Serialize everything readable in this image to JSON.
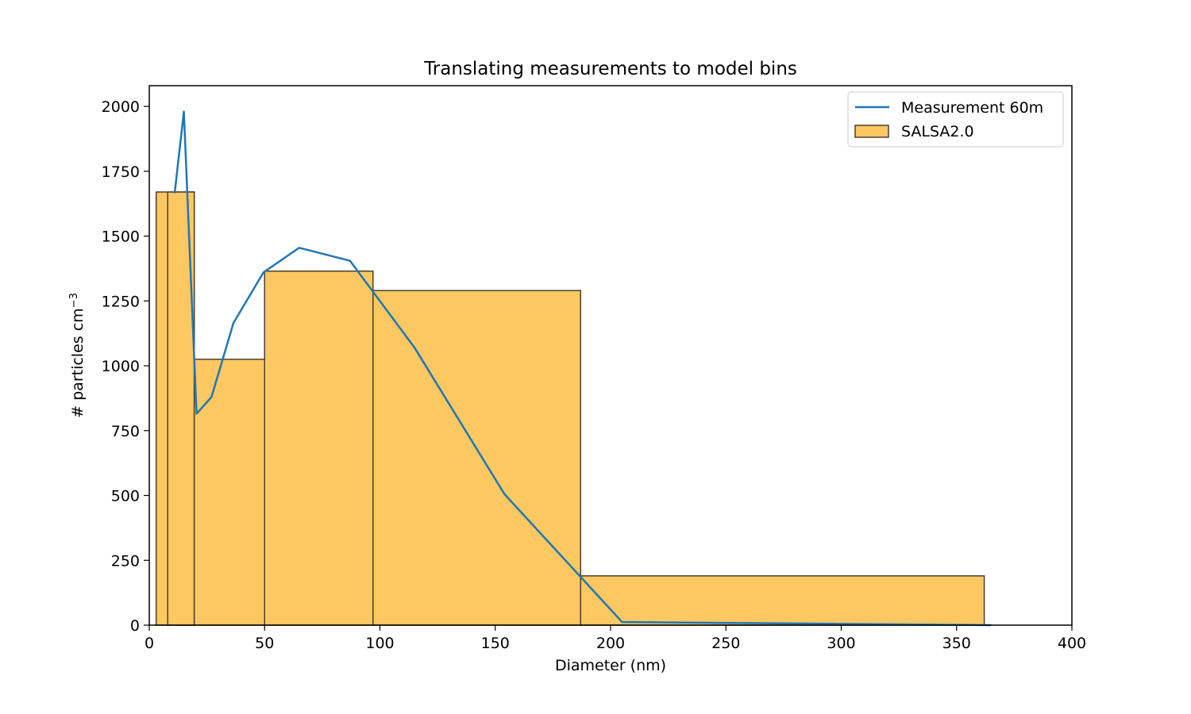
{
  "chart_data": {
    "type": "bar",
    "title": "Translating measurements to model bins",
    "xlabel": "Diameter (nm)",
    "ylabel_main": "# particles cm",
    "ylabel_sup": "−3",
    "xlim": [
      0,
      400
    ],
    "ylim": [
      0,
      2080
    ],
    "xticks": [
      0,
      50,
      100,
      150,
      200,
      250,
      300,
      350,
      400
    ],
    "yticks": [
      0,
      250,
      500,
      750,
      1000,
      1250,
      1500,
      1750,
      2000
    ],
    "grid": false,
    "legend_position": "top-right",
    "bins": {
      "name": "SALSA2.0",
      "color": "#fdc862",
      "edge_color": "#4a4030",
      "items": [
        {
          "left": 3,
          "right": 19.5,
          "value": 1670
        },
        {
          "left": 8,
          "right": 19.5,
          "value": 1670
        },
        {
          "left": 19.5,
          "right": 50,
          "value": 1025
        },
        {
          "left": 50,
          "right": 97,
          "value": 1365
        },
        {
          "left": 97,
          "right": 187,
          "value": 1290
        },
        {
          "left": 187,
          "right": 362,
          "value": 190
        }
      ]
    },
    "line": {
      "name": "Measurement 60m",
      "color": "#1f77b4",
      "x": [
        11,
        15,
        20.5,
        27,
        36.5,
        49.5,
        65,
        87,
        115,
        154,
        205,
        365
      ],
      "y": [
        1665,
        1980,
        815,
        880,
        1165,
        1360,
        1455,
        1405,
        1070,
        505,
        12,
        0
      ]
    }
  }
}
